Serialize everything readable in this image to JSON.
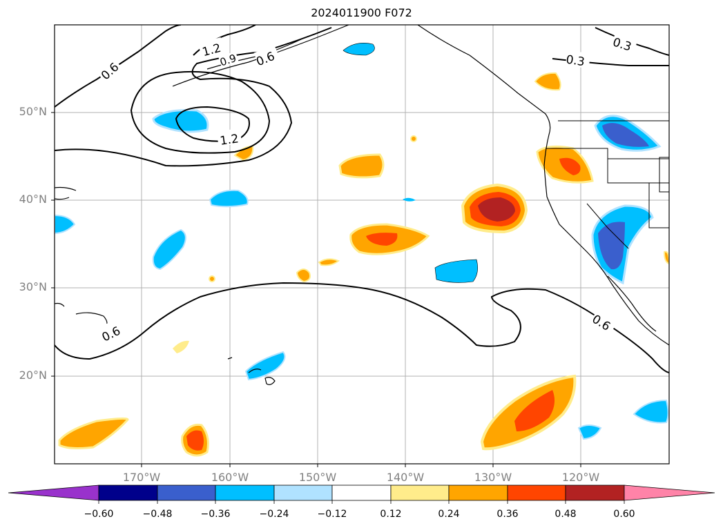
{
  "title": "2024011900 F072",
  "latitude_labels": [
    "50°N",
    "40°N",
    "30°N",
    "20°N"
  ],
  "longitude_labels": [
    "170°W",
    "160°W",
    "150°W",
    "140°W",
    "130°W",
    "120°W"
  ],
  "contour_labels": [
    "1.2",
    "0.9",
    "0.6",
    "0.6",
    "1.2",
    "0.6",
    "0.3",
    "0.3",
    "0.6"
  ],
  "colorbar": {
    "tick_labels": [
      "−0.60",
      "−0.48",
      "−0.36",
      "−0.24",
      "−0.12",
      "0.12",
      "0.24",
      "0.36",
      "0.48",
      "0.60"
    ],
    "colors": [
      "#9932cc",
      "#00008b",
      "#3a5fcd",
      "#00bfff",
      "#b0e2ff",
      "#ffffff",
      "#ffec8b",
      "#ffa500",
      "#ff4500",
      "#b22222",
      "#ff83a8"
    ]
  }
}
